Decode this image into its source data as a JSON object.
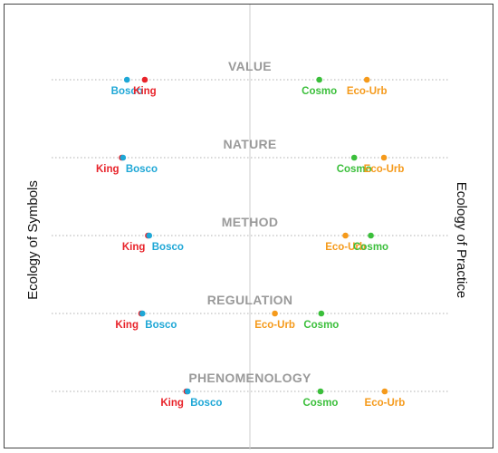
{
  "axes": {
    "left_label": "Ecology of Symbols",
    "right_label": "Ecology of Practice"
  },
  "colors": {
    "Bosco": "#1ea7d6",
    "King": "#e8232a",
    "Cosmo": "#3bbf3b",
    "Eco-Urb": "#f59a1b",
    "category_text": "#9a9a9a",
    "center_line": "#cccccc",
    "dotted_line": "#b0b0b0"
  },
  "rows": [
    {
      "category": "VALUE",
      "points": [
        {
          "name": "Bosco",
          "pos": 0.19,
          "label": "Bosco",
          "label_side": "center"
        },
        {
          "name": "King",
          "pos": 0.235,
          "label": "King",
          "label_side": "center"
        },
        {
          "name": "Cosmo",
          "pos": 0.675,
          "label": "Cosmo",
          "label_side": "center"
        },
        {
          "name": "Eco-Urb",
          "pos": 0.795,
          "label": "Eco-Urb",
          "label_side": "center"
        }
      ]
    },
    {
      "category": "NATURE",
      "points": [
        {
          "name": "King",
          "pos": 0.177,
          "label": "King",
          "label_side": "left"
        },
        {
          "name": "Bosco",
          "pos": 0.18,
          "label": "Bosco",
          "label_side": "right"
        },
        {
          "name": "Cosmo",
          "pos": 0.763,
          "label": "Cosmo",
          "label_side": "center"
        },
        {
          "name": "Eco-Urb",
          "pos": 0.838,
          "label": "Eco-Urb",
          "label_side": "center"
        }
      ]
    },
    {
      "category": "METHOD",
      "points": [
        {
          "name": "King",
          "pos": 0.243,
          "label": "King",
          "label_side": "left"
        },
        {
          "name": "Bosco",
          "pos": 0.246,
          "label": "Bosco",
          "label_side": "right"
        },
        {
          "name": "Eco-Urb",
          "pos": 0.741,
          "label": "Eco-Urb",
          "label_side": "center"
        },
        {
          "name": "Cosmo",
          "pos": 0.805,
          "label": "Cosmo",
          "label_side": "center"
        }
      ]
    },
    {
      "category": "REGULATION",
      "points": [
        {
          "name": "King",
          "pos": 0.226,
          "label": "King",
          "label_side": "left"
        },
        {
          "name": "Bosco",
          "pos": 0.229,
          "label": "Bosco",
          "label_side": "right"
        },
        {
          "name": "Eco-Urb",
          "pos": 0.563,
          "label": "Eco-Urb",
          "label_side": "center"
        },
        {
          "name": "Cosmo",
          "pos": 0.68,
          "label": "Cosmo",
          "label_side": "center"
        }
      ]
    },
    {
      "category": "PHENOMENOLOGY",
      "points": [
        {
          "name": "King",
          "pos": 0.34,
          "label": "King",
          "label_side": "left"
        },
        {
          "name": "Bosco",
          "pos": 0.343,
          "label": "Bosco",
          "label_side": "right"
        },
        {
          "name": "Cosmo",
          "pos": 0.678,
          "label": "Cosmo",
          "label_side": "center"
        },
        {
          "name": "Eco-Urb",
          "pos": 0.84,
          "label": "Eco-Urb",
          "label_side": "center"
        }
      ]
    }
  ]
}
